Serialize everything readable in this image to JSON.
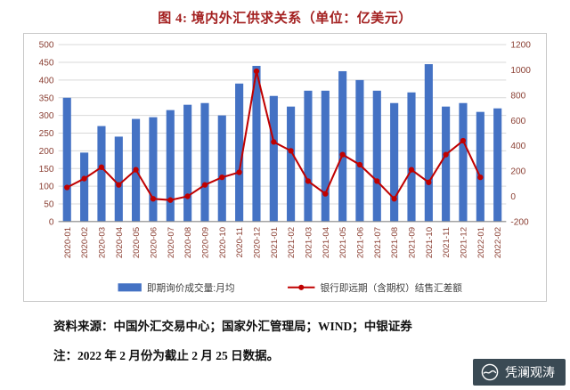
{
  "title": "图 4: 境内外汇供求关系（单位：亿美元）",
  "chart_data": {
    "type": "bar",
    "subtype": "bar-with-line-overlay",
    "categories": [
      "2020-01",
      "2020-02",
      "2020-03",
      "2020-04",
      "2020-05",
      "2020-06",
      "2020-07",
      "2020-08",
      "2020-09",
      "2020-10",
      "2020-11",
      "2020-12",
      "2021-01",
      "2021-02",
      "2021-03",
      "2021-04",
      "2021-05",
      "2021-06",
      "2021-07",
      "2021-08",
      "2021-09",
      "2021-10",
      "2021-11",
      "2021-12",
      "2022-01",
      "2022-02"
    ],
    "series": [
      {
        "name": "即期询价成交量:月均",
        "type": "bar",
        "axis": "left",
        "values": [
          350,
          195,
          270,
          240,
          290,
          295,
          315,
          330,
          335,
          300,
          390,
          440,
          355,
          325,
          370,
          370,
          425,
          400,
          370,
          335,
          365,
          445,
          325,
          335,
          310,
          320
        ]
      },
      {
        "name": "银行即远期（含期权）结售汇差额",
        "type": "line",
        "axis": "right",
        "values": [
          70,
          140,
          230,
          90,
          210,
          -20,
          -30,
          0,
          90,
          150,
          190,
          990,
          430,
          360,
          120,
          20,
          330,
          250,
          120,
          -20,
          210,
          110,
          330,
          440,
          150,
          null
        ]
      }
    ],
    "left_axis": {
      "min": 0,
      "max": 500,
      "step": 50
    },
    "right_axis": {
      "min": -200,
      "max": 1200,
      "step": 200
    },
    "grid": true,
    "legend_position": "bottom"
  },
  "footer": {
    "source": "资料来源：中国外汇交易中心；国家外汇管理局；WIND；中银证券",
    "note": "注：2022 年 2 月份为截止 2 月 25 日数据。"
  },
  "watermark": {
    "text": "凭澜观涛"
  },
  "colors": {
    "title": "#A32020",
    "bar": "#4472C4",
    "line": "#C00000",
    "grid": "#D9D9D9",
    "axis": "#8C8C8C",
    "tick_text": "#8B4034",
    "legend_text": "#3F3F3F",
    "frame": "#C8C8C8",
    "watermark_bg": "#3A4A54"
  }
}
